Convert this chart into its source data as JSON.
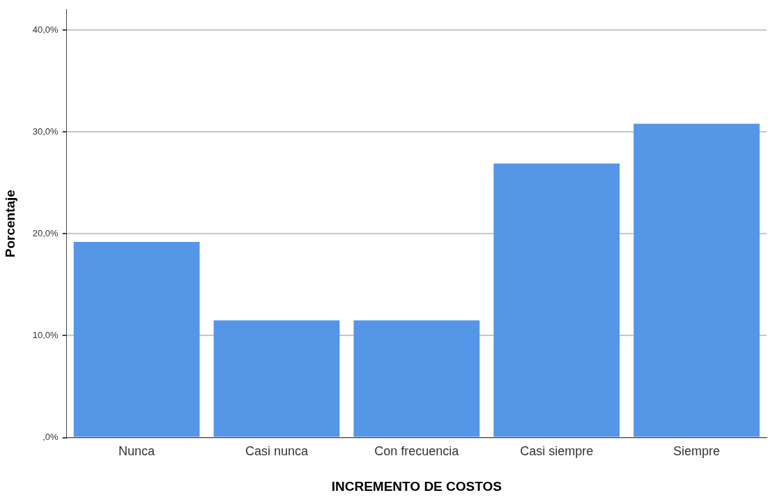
{
  "chart_data": {
    "type": "bar",
    "xlabel": "INCREMENTO DE COSTOS",
    "ylabel": "Porcentaje",
    "categories": [
      "Nunca",
      "Casi nunca",
      "Con frecuencia",
      "Casi siempre",
      "Siempre"
    ],
    "values": [
      19.2,
      11.5,
      11.5,
      26.9,
      30.8
    ],
    "color": "#5596e6",
    "ylim": [
      0,
      42
    ],
    "yticks": [
      {
        "value": 0,
        "label": ",0%"
      },
      {
        "value": 10,
        "label": "10,0%"
      },
      {
        "value": 20,
        "label": "20,0%"
      },
      {
        "value": 30,
        "label": "30,0%"
      },
      {
        "value": 40,
        "label": "40,0%"
      }
    ],
    "grid": "y",
    "legend": false
  }
}
